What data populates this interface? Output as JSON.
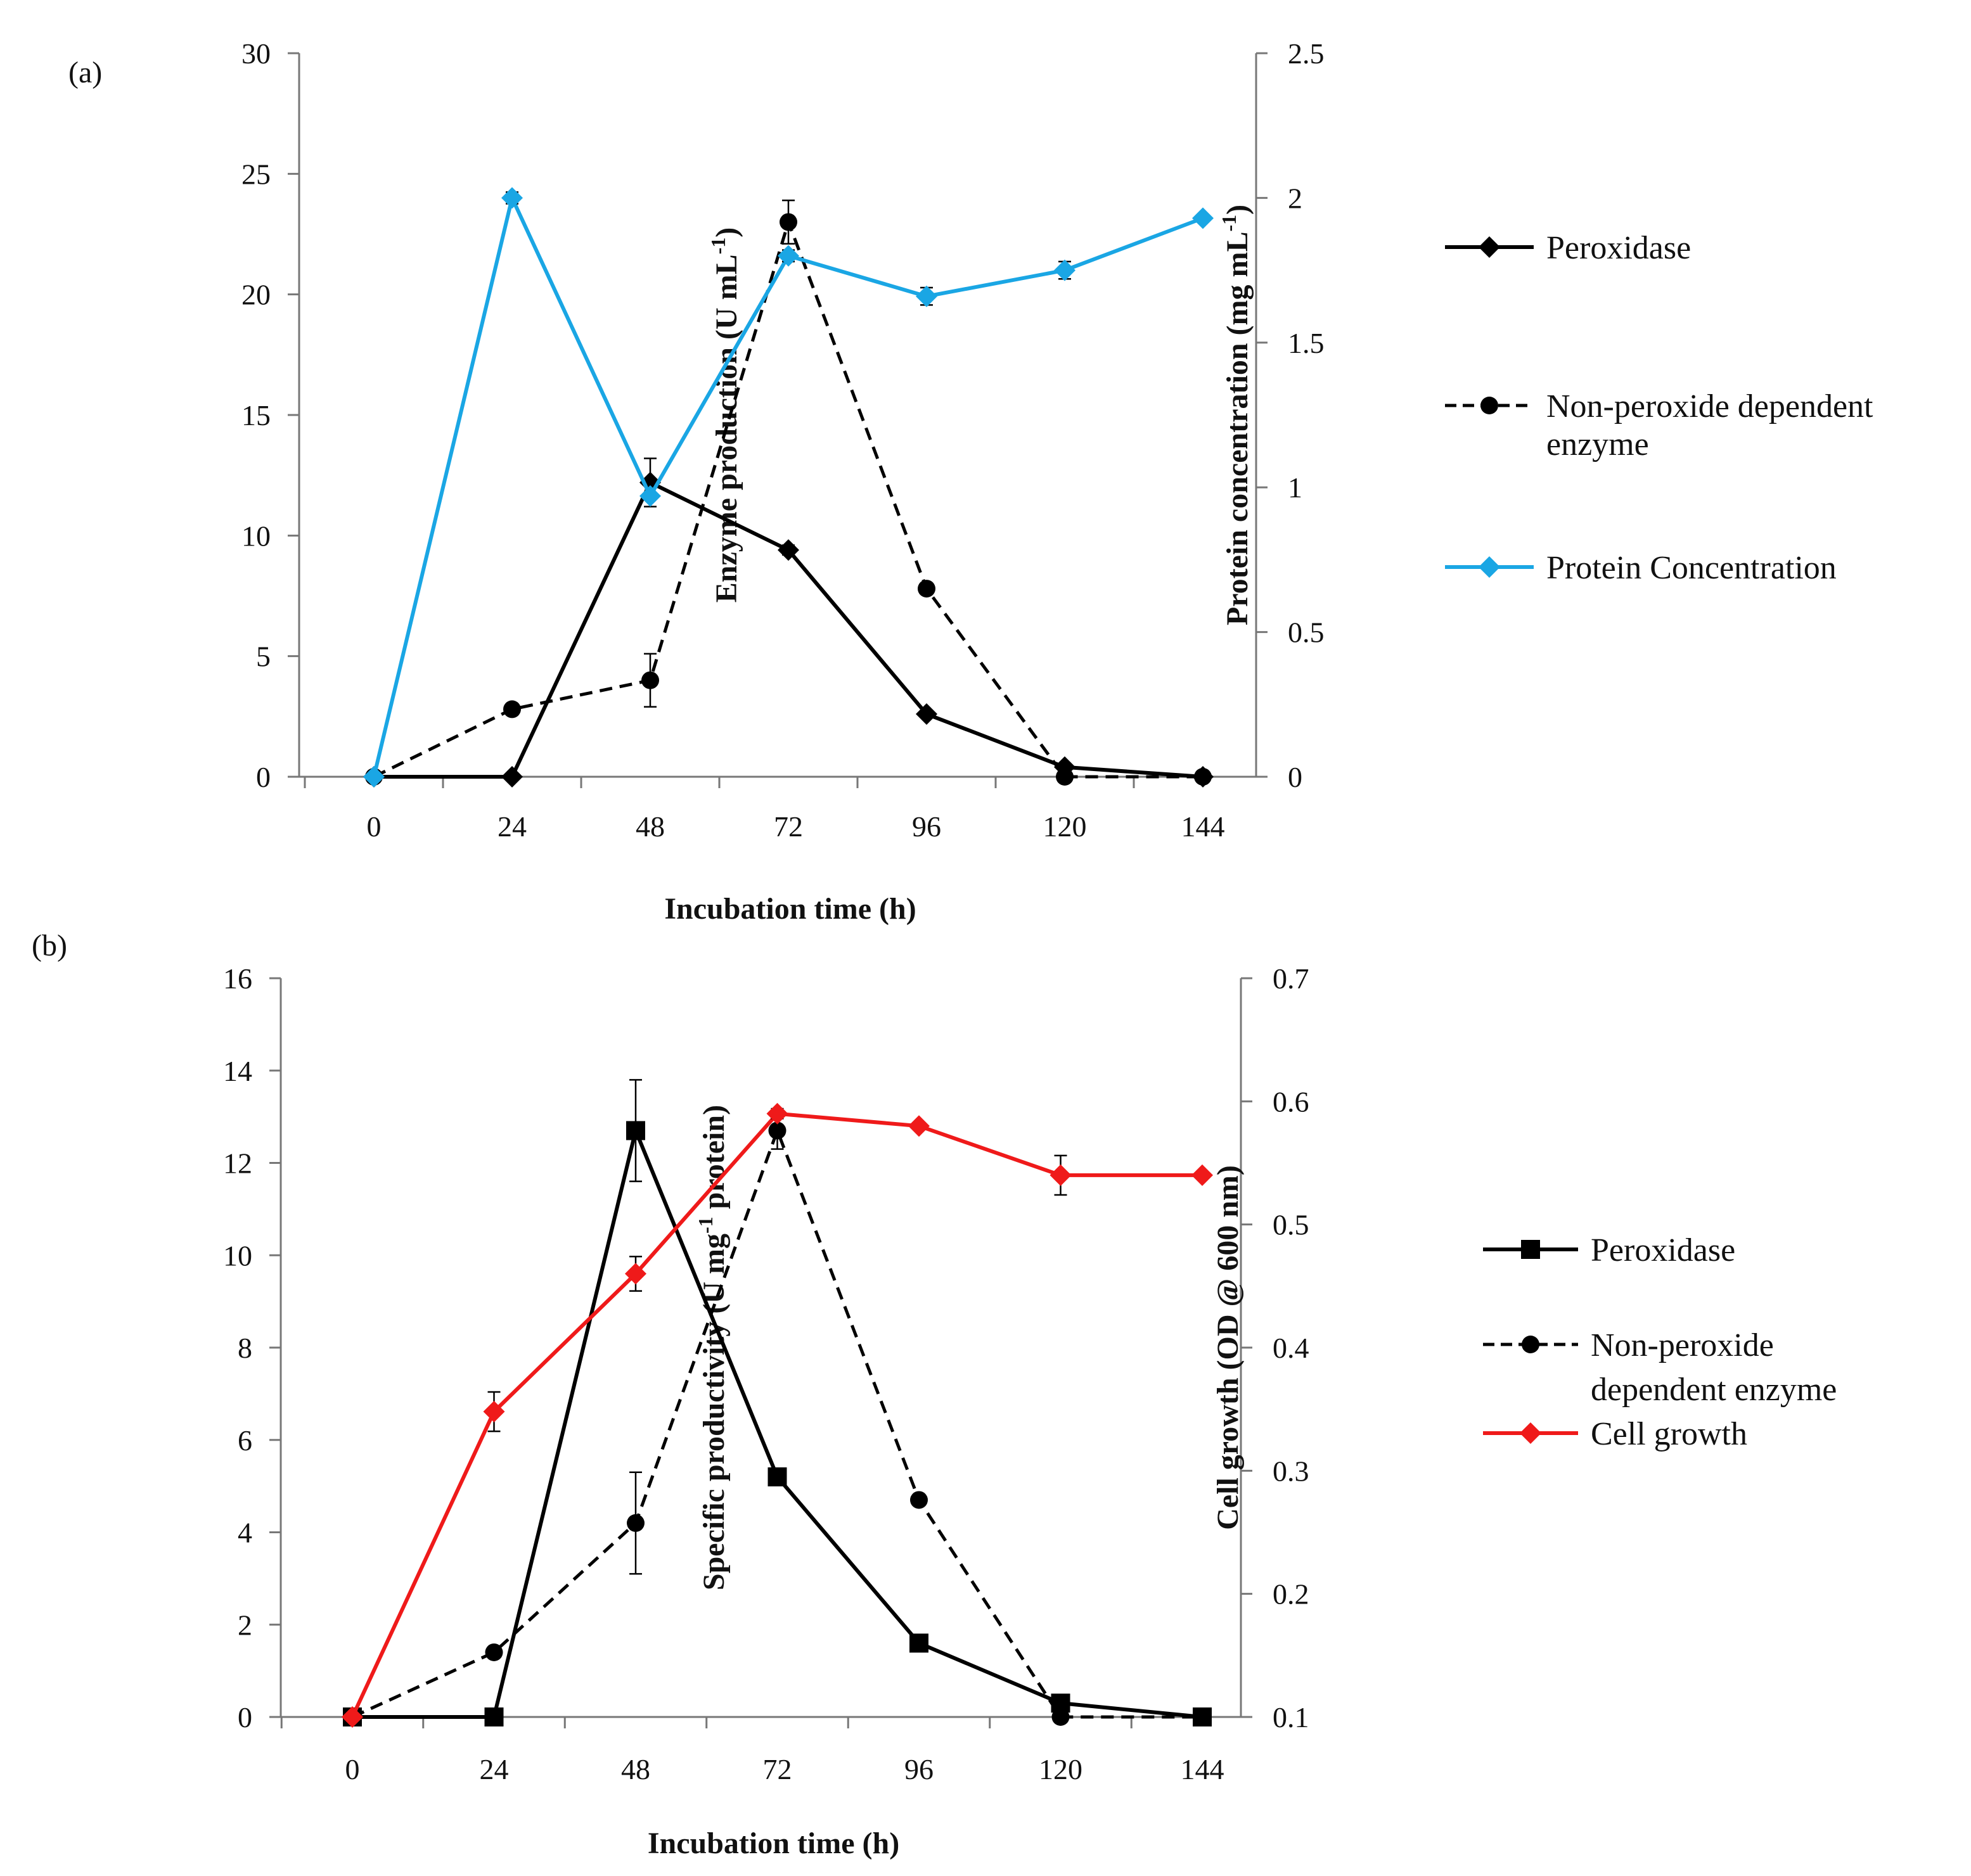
{
  "chart_data": [
    {
      "panel_label": "(a)",
      "type": "line",
      "x": [
        0,
        24,
        48,
        72,
        96,
        120,
        144
      ],
      "x_ticks": [
        "0",
        "24",
        "48",
        "72",
        "96",
        "120",
        "144"
      ],
      "xlabel": "Incubation time (h)",
      "ylabel_left": "Enzyme production (U mL-1)",
      "ylabel_left_parts": {
        "before": "Enzyme production (U mL",
        "sup": "-1",
        "after": ")"
      },
      "ylabel_right": "Protein concentration (mg mL-1)",
      "ylabel_right_parts": {
        "before": "Protein concentration (mg mL",
        "sup": "-1",
        "after": ")"
      },
      "ylim_left": [
        0,
        30
      ],
      "y_ticks_left": [
        "0",
        "5",
        "10",
        "15",
        "20",
        "25",
        "30"
      ],
      "ylim_right": [
        0,
        2.5
      ],
      "y_ticks_right": [
        "0",
        "0.5",
        "1",
        "1.5",
        "2",
        "2.5"
      ],
      "series": [
        {
          "name": "Peroxidase",
          "axis": "left",
          "color": "#000000",
          "dash": false,
          "marker": "diamond",
          "values": [
            0,
            0,
            12.2,
            9.4,
            2.6,
            0.4,
            0
          ],
          "errors": [
            0,
            0,
            1.0,
            0.2,
            0.1,
            0.1,
            0
          ]
        },
        {
          "name": "Non-peroxide dependent enzyme",
          "legend_lines": [
            "Non-peroxide dependent",
            "enzyme"
          ],
          "axis": "left",
          "color": "#000000",
          "dash": true,
          "marker": "circle",
          "values": [
            0,
            2.8,
            4.0,
            23.0,
            7.8,
            0,
            0
          ],
          "errors": [
            0,
            0.2,
            1.1,
            0.9,
            0.1,
            0,
            0
          ]
        },
        {
          "name": "Protein Concentration",
          "axis": "right",
          "color": "#1aa6e4",
          "dash": false,
          "marker": "diamond",
          "values": [
            0,
            2.0,
            0.97,
            1.8,
            1.66,
            1.75,
            1.93
          ],
          "errors": [
            0,
            0.02,
            0,
            0.02,
            0.03,
            0.03,
            0.01
          ]
        }
      ],
      "legend": "right"
    },
    {
      "panel_label": "(b)",
      "type": "line",
      "x": [
        0,
        24,
        48,
        72,
        96,
        120,
        144
      ],
      "x_ticks": [
        "0",
        "24",
        "48",
        "72",
        "96",
        "120",
        "144"
      ],
      "xlabel": "Incubation time (h)",
      "ylabel_left": "Specific productivity (U mg-1 protein)",
      "ylabel_left_parts": {
        "before": "Specific productivity (U mg",
        "sup": "-1",
        "after": " protein)"
      },
      "ylabel_right": "Cell growth (OD @ 600 nm)",
      "ylabel_right_parts": {
        "before": "Cell growth (OD @ 600 nm)",
        "sup": "",
        "after": ""
      },
      "ylim_left": [
        0,
        16
      ],
      "y_ticks_left": [
        "0",
        "2",
        "4",
        "6",
        "8",
        "10",
        "12",
        "14",
        "16"
      ],
      "ylim_right": [
        0.1,
        0.7
      ],
      "y_ticks_right": [
        "0.1",
        "0.2",
        "0.3",
        "0.4",
        "0.5",
        "0.6",
        "0.7"
      ],
      "series": [
        {
          "name": "Peroxidase",
          "axis": "left",
          "color": "#000000",
          "dash": false,
          "marker": "square",
          "values": [
            0,
            0,
            12.7,
            5.2,
            1.6,
            0.3,
            0
          ],
          "errors": [
            0,
            0,
            1.1,
            0.1,
            0.1,
            0.1,
            0
          ]
        },
        {
          "name": "Non-peroxide dependent enzyme",
          "legend_lines": [
            "Non-peroxide",
            "dependent enzyme"
          ],
          "axis": "left",
          "color": "#000000",
          "dash": true,
          "marker": "circle",
          "values": [
            0,
            1.4,
            4.2,
            12.7,
            4.7,
            0,
            0
          ],
          "errors": [
            0,
            0.1,
            1.1,
            0.4,
            0.1,
            0,
            0
          ]
        },
        {
          "name": "Cell growth",
          "axis": "right",
          "color": "#ef1a1a",
          "dash": false,
          "marker": "diamond",
          "values": [
            0.1,
            0.348,
            0.46,
            0.59,
            0.58,
            0.54,
            0.54
          ],
          "errors": [
            0,
            0.016,
            0.014,
            0.004,
            0,
            0.016,
            0
          ]
        }
      ],
      "legend": "right"
    }
  ]
}
